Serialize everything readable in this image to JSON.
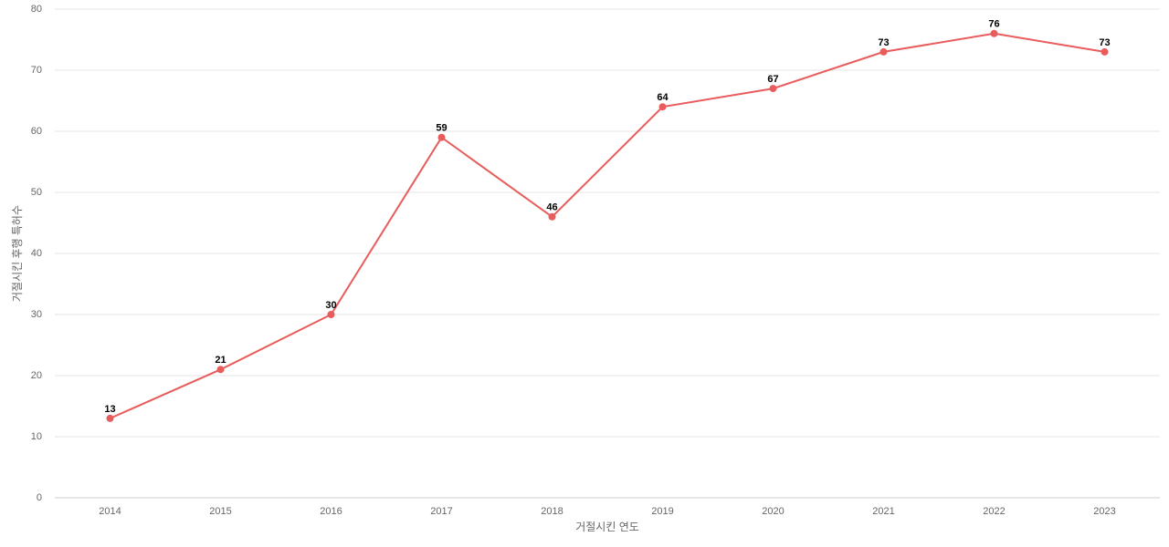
{
  "chart_data": {
    "type": "line",
    "xlabel": "거절시킨 연도",
    "ylabel": "거절시킨 후행 특허수",
    "categories": [
      "2014",
      "2015",
      "2016",
      "2017",
      "2018",
      "2019",
      "2020",
      "2021",
      "2022",
      "2023"
    ],
    "series": [
      {
        "color": "#e85c5c",
        "values": [
          13,
          21,
          30,
          59,
          46,
          64,
          67,
          73,
          76,
          73
        ]
      }
    ],
    "ylim": [
      0,
      80
    ],
    "yticks": [
      0,
      10,
      20,
      30,
      40,
      50,
      60,
      70,
      80
    ],
    "grid": true,
    "data_labels": true
  }
}
